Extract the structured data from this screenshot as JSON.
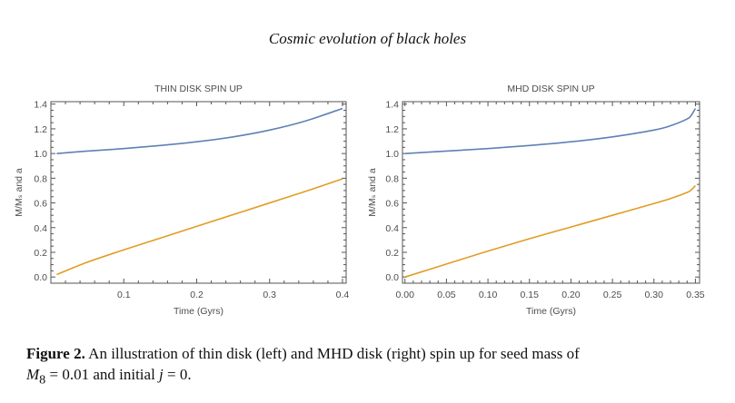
{
  "page": {
    "running_head": "Cosmic evolution of black holes",
    "caption_label": "Figure 2.",
    "caption_text": " An illustration of thin disk (left) and MHD disk (right) spin up for seed mass of",
    "caption_line2_prefix": "M",
    "caption_line2_sub": "8",
    "caption_line2_mid": " = 0.01 and initial ",
    "caption_line2_var": "j",
    "caption_line2_end": " = 0."
  },
  "chart_data": [
    {
      "type": "line",
      "title": "THIN DISK SPIN UP",
      "xlabel": "Time (Gyrs)",
      "ylabel": "M/M_S and a",
      "xlim": [
        0.0,
        0.405
      ],
      "ylim": [
        -0.05,
        1.42
      ],
      "xticks": [
        0.1,
        0.2,
        0.3,
        0.4
      ],
      "xtick_labels": [
        "0.1",
        "0.2",
        "0.3",
        "0.4"
      ],
      "yticks": [
        0.0,
        0.2,
        0.4,
        0.6,
        0.8,
        1.0,
        1.2,
        1.4
      ],
      "ytick_labels": [
        "0.0",
        "0.2",
        "0.4",
        "0.6",
        "0.8",
        "1.0",
        "1.2",
        "1.4"
      ],
      "grid": false,
      "series": [
        {
          "name": "M/M_S",
          "color": "#5e81b5",
          "x": [
            0.008,
            0.05,
            0.1,
            0.15,
            0.2,
            0.25,
            0.3,
            0.35,
            0.4
          ],
          "y": [
            1.0,
            1.02,
            1.04,
            1.065,
            1.095,
            1.135,
            1.19,
            1.265,
            1.365
          ]
        },
        {
          "name": "a",
          "color": "#e19c24",
          "x": [
            0.008,
            0.05,
            0.1,
            0.15,
            0.2,
            0.25,
            0.3,
            0.35,
            0.4
          ],
          "y": [
            0.02,
            0.12,
            0.22,
            0.315,
            0.41,
            0.505,
            0.6,
            0.695,
            0.795
          ]
        }
      ]
    },
    {
      "type": "line",
      "title": "MHD DISK SPIN UP",
      "xlabel": "Time (Gyrs)",
      "ylabel": "M/M_S and a",
      "xlim": [
        -0.003,
        0.355
      ],
      "ylim": [
        -0.05,
        1.42
      ],
      "xticks": [
        0.0,
        0.05,
        0.1,
        0.15,
        0.2,
        0.25,
        0.3,
        0.35
      ],
      "xtick_labels": [
        "0.00",
        "0.05",
        "0.10",
        "0.15",
        "0.20",
        "0.25",
        "0.30",
        "0.35"
      ],
      "yticks": [
        0.0,
        0.2,
        0.4,
        0.6,
        0.8,
        1.0,
        1.2,
        1.4
      ],
      "ytick_labels": [
        "0.0",
        "0.2",
        "0.4",
        "0.6",
        "0.8",
        "1.0",
        "1.2",
        "1.4"
      ],
      "grid": false,
      "series": [
        {
          "name": "M/M_S",
          "color": "#5e81b5",
          "x": [
            0.0,
            0.05,
            0.1,
            0.15,
            0.2,
            0.25,
            0.3,
            0.32,
            0.34,
            0.345,
            0.35
          ],
          "y": [
            1.0,
            1.02,
            1.04,
            1.065,
            1.095,
            1.135,
            1.19,
            1.225,
            1.28,
            1.31,
            1.365
          ]
        },
        {
          "name": "a",
          "color": "#e19c24",
          "x": [
            0.0,
            0.05,
            0.1,
            0.15,
            0.2,
            0.25,
            0.3,
            0.32,
            0.34,
            0.345,
            0.35
          ],
          "y": [
            0.0,
            0.105,
            0.21,
            0.31,
            0.405,
            0.5,
            0.595,
            0.635,
            0.685,
            0.705,
            0.74
          ]
        }
      ]
    }
  ]
}
